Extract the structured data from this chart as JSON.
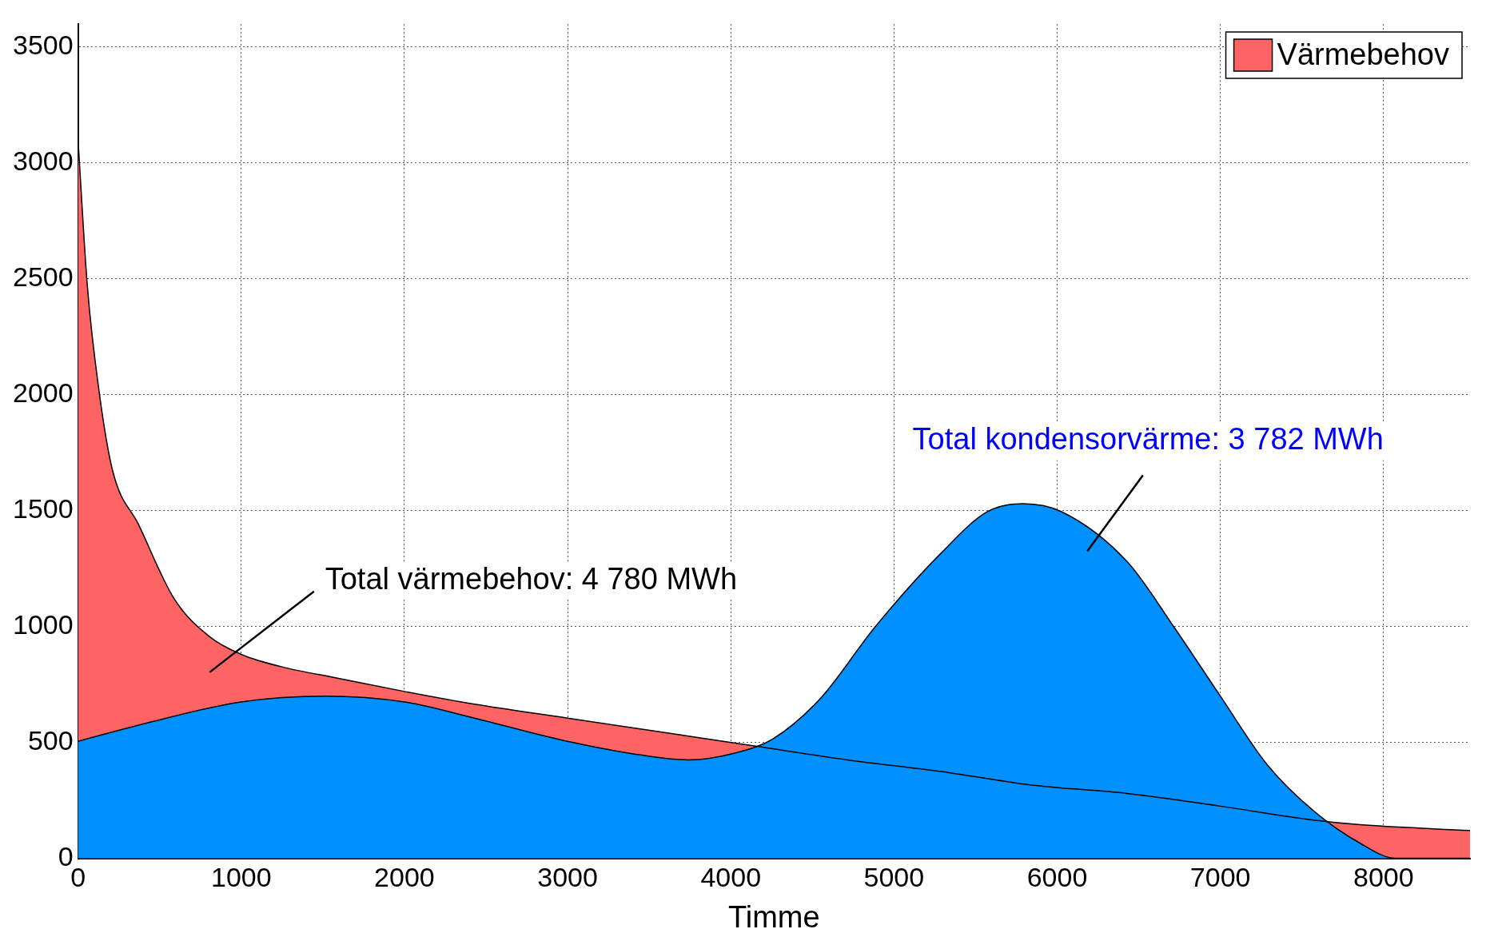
{
  "chart_data": {
    "type": "area",
    "xlabel": "Timme",
    "xlim": [
      0,
      8530
    ],
    "ylim": [
      0,
      3600
    ],
    "xticks": [
      0,
      1000,
      2000,
      3000,
      4000,
      5000,
      6000,
      7000,
      8000
    ],
    "yticks": [
      0,
      500,
      1000,
      1500,
      2000,
      2500,
      3000,
      3500
    ],
    "grid": true,
    "legend": "top right",
    "marker": "none",
    "series": [
      {
        "name": "Värmebehov",
        "color": "#ff6464",
        "x": [
          0,
          57,
          126,
          211,
          371,
          589,
          800,
          1000,
          1286,
          1571,
          2000,
          2429,
          3000,
          3571,
          4143,
          4714,
          5286,
          5857,
          6429,
          7000,
          7571,
          7857,
          8530
        ],
        "values": [
          3100,
          2470,
          2030,
          1675,
          1440,
          1120,
          960,
          880,
          820,
          780,
          720,
          665,
          605,
          545,
          485,
          425,
          375,
          315,
          280,
          225,
          165,
          145,
          120
        ]
      },
      {
        "color": "#0090ff",
        "x": [
          0,
          429,
          1000,
          1514,
          2000,
          2429,
          3000,
          3457,
          3743,
          4029,
          4257,
          4543,
          4886,
          5286,
          5571,
          5789,
          6029,
          6429,
          6714,
          7000,
          7286,
          7571,
          7857,
          8074,
          8530
        ],
        "values": [
          505,
          585,
          675,
          700,
          675,
          605,
          505,
          445,
          425,
          455,
          515,
          685,
          1000,
          1315,
          1495,
          1530,
          1495,
          1280,
          1000,
          700,
          405,
          205,
          65,
          0,
          0
        ]
      }
    ],
    "annotations": [
      "Total värmebehov: 4 780 MWh",
      "Total kondensorvärme: 3 782 MWh"
    ]
  }
}
